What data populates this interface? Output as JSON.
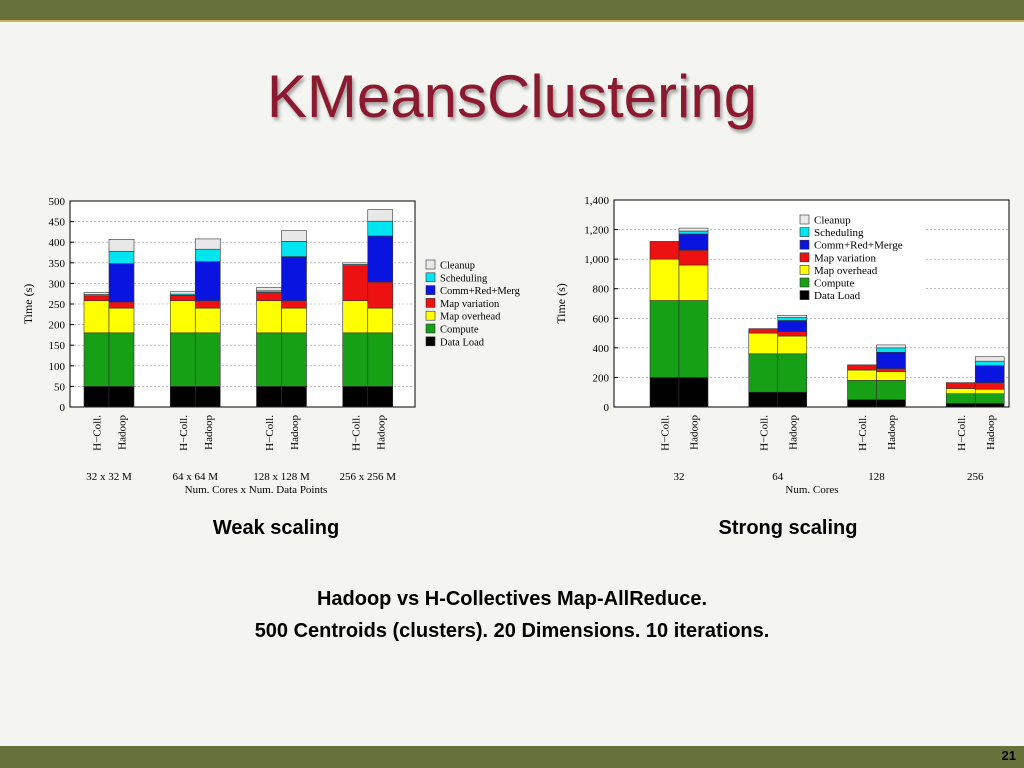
{
  "slide": {
    "title": "KMeansClustering",
    "weak_caption": "Weak scaling",
    "strong_caption": "Strong scaling",
    "description_line1": "Hadoop vs H-Collectives Map-AllReduce.",
    "description_line2": "500 Centroids (clusters). 20 Dimensions. 10 iterations.",
    "page_number": "21"
  },
  "colors": {
    "Data Load": "#000000",
    "Compute": "#16a016",
    "Map overhead": "#ffff00",
    "Map variation": "#ee1111",
    "Comm+Red+Merge": "#0a14e0",
    "Scheduling": "#00e5f0",
    "Cleanup": "#e8e8e8"
  },
  "chart_data": [
    {
      "type": "bar",
      "stacked": true,
      "ylabel": "Time (s)",
      "xlabel": "Num. Cores x Num. Data Points",
      "ylim": [
        0,
        500
      ],
      "yticks": [
        "0",
        "50",
        "100",
        "150",
        "200",
        "250",
        "300",
        "350",
        "400",
        "450",
        "500"
      ],
      "grid": true,
      "legend_position": "right",
      "legend_labels": [
        "Cleanup",
        "Scheduling",
        "Comm+Red+Merg",
        "Map variation",
        "Map overhead",
        "Compute",
        "Data Load"
      ],
      "groups": [
        "32 x 32 M",
        "64 x 64 M",
        "128 x 128 M",
        "256 x 256 M"
      ],
      "bar_labels": [
        "H−Coll.",
        "Hadoop"
      ],
      "bars": [
        {
          "group": 0,
          "label": "H−Coll.",
          "values": {
            "Data Load": 50,
            "Compute": 130,
            "Map overhead": 78,
            "Map variation": 12,
            "Comm+Red+Merge": 0,
            "Scheduling": 3,
            "Cleanup": 5
          }
        },
        {
          "group": 0,
          "label": "Hadoop",
          "values": {
            "Data Load": 50,
            "Compute": 130,
            "Map overhead": 60,
            "Map variation": 15,
            "Comm+Red+Merge": 93,
            "Scheduling": 30,
            "Cleanup": 29
          }
        },
        {
          "group": 1,
          "label": "H−Coll.",
          "values": {
            "Data Load": 50,
            "Compute": 130,
            "Map overhead": 78,
            "Map variation": 13,
            "Comm+Red+Merge": 0,
            "Scheduling": 3,
            "Cleanup": 6
          }
        },
        {
          "group": 1,
          "label": "Hadoop",
          "values": {
            "Data Load": 50,
            "Compute": 130,
            "Map overhead": 60,
            "Map variation": 18,
            "Comm+Red+Merge": 95,
            "Scheduling": 30,
            "Cleanup": 25
          }
        },
        {
          "group": 2,
          "label": "H−Coll.",
          "values": {
            "Data Load": 50,
            "Compute": 130,
            "Map overhead": 78,
            "Map variation": 20,
            "Comm+Red+Merge": 0,
            "Scheduling": 4,
            "Cleanup": 8
          }
        },
        {
          "group": 2,
          "label": "Hadoop",
          "values": {
            "Data Load": 50,
            "Compute": 130,
            "Map overhead": 60,
            "Map variation": 18,
            "Comm+Red+Merge": 107,
            "Scheduling": 37,
            "Cleanup": 26
          }
        },
        {
          "group": 3,
          "label": "H−Coll.",
          "values": {
            "Data Load": 50,
            "Compute": 130,
            "Map overhead": 78,
            "Map variation": 85,
            "Comm+Red+Merge": 0,
            "Scheduling": 3,
            "Cleanup": 4
          }
        },
        {
          "group": 3,
          "label": "Hadoop",
          "values": {
            "Data Load": 50,
            "Compute": 130,
            "Map overhead": 60,
            "Map variation": 63,
            "Comm+Red+Merge": 112,
            "Scheduling": 36,
            "Cleanup": 28
          }
        }
      ]
    },
    {
      "type": "bar",
      "stacked": true,
      "ylabel": "Time (s)",
      "xlabel": "Num. Cores",
      "ylim": [
        0,
        1400
      ],
      "yticks": [
        "0",
        "200",
        "400",
        "600",
        "800",
        "1,000",
        "1,200",
        "1,400"
      ],
      "grid": true,
      "legend_position": "top-right",
      "legend_labels": [
        "Cleanup",
        "Scheduling",
        "Comm+Red+Merge",
        "Map variation",
        "Map overhead",
        "Compute",
        "Data Load"
      ],
      "groups": [
        "32",
        "64",
        "128",
        "256"
      ],
      "bar_labels": [
        "H−Coll.",
        "Hadoop"
      ],
      "bars": [
        {
          "group": 0,
          "label": "H−Coll.",
          "values": {
            "Data Load": 200,
            "Compute": 520,
            "Map overhead": 280,
            "Map variation": 120,
            "Comm+Red+Merge": 0,
            "Scheduling": 0,
            "Cleanup": 0
          }
        },
        {
          "group": 0,
          "label": "Hadoop",
          "values": {
            "Data Load": 200,
            "Compute": 520,
            "Map overhead": 240,
            "Map variation": 100,
            "Comm+Red+Merge": 110,
            "Scheduling": 20,
            "Cleanup": 20
          }
        },
        {
          "group": 1,
          "label": "H−Coll.",
          "values": {
            "Data Load": 100,
            "Compute": 260,
            "Map overhead": 140,
            "Map variation": 30,
            "Comm+Red+Merge": 0,
            "Scheduling": 0,
            "Cleanup": 0
          }
        },
        {
          "group": 1,
          "label": "Hadoop",
          "values": {
            "Data Load": 100,
            "Compute": 260,
            "Map overhead": 120,
            "Map variation": 30,
            "Comm+Red+Merge": 75,
            "Scheduling": 20,
            "Cleanup": 15
          }
        },
        {
          "group": 2,
          "label": "H−Coll.",
          "values": {
            "Data Load": 50,
            "Compute": 130,
            "Map overhead": 70,
            "Map variation": 35,
            "Comm+Red+Merge": 0,
            "Scheduling": 0,
            "Cleanup": 0
          }
        },
        {
          "group": 2,
          "label": "Hadoop",
          "values": {
            "Data Load": 50,
            "Compute": 130,
            "Map overhead": 60,
            "Map variation": 20,
            "Comm+Red+Merge": 110,
            "Scheduling": 30,
            "Cleanup": 20
          }
        },
        {
          "group": 3,
          "label": "H−Coll.",
          "values": {
            "Data Load": 25,
            "Compute": 65,
            "Map overhead": 35,
            "Map variation": 40,
            "Comm+Red+Merge": 0,
            "Scheduling": 0,
            "Cleanup": 0
          }
        },
        {
          "group": 3,
          "label": "Hadoop",
          "values": {
            "Data Load": 25,
            "Compute": 65,
            "Map overhead": 30,
            "Map variation": 45,
            "Comm+Red+Merge": 115,
            "Scheduling": 30,
            "Cleanup": 30
          }
        }
      ]
    }
  ]
}
